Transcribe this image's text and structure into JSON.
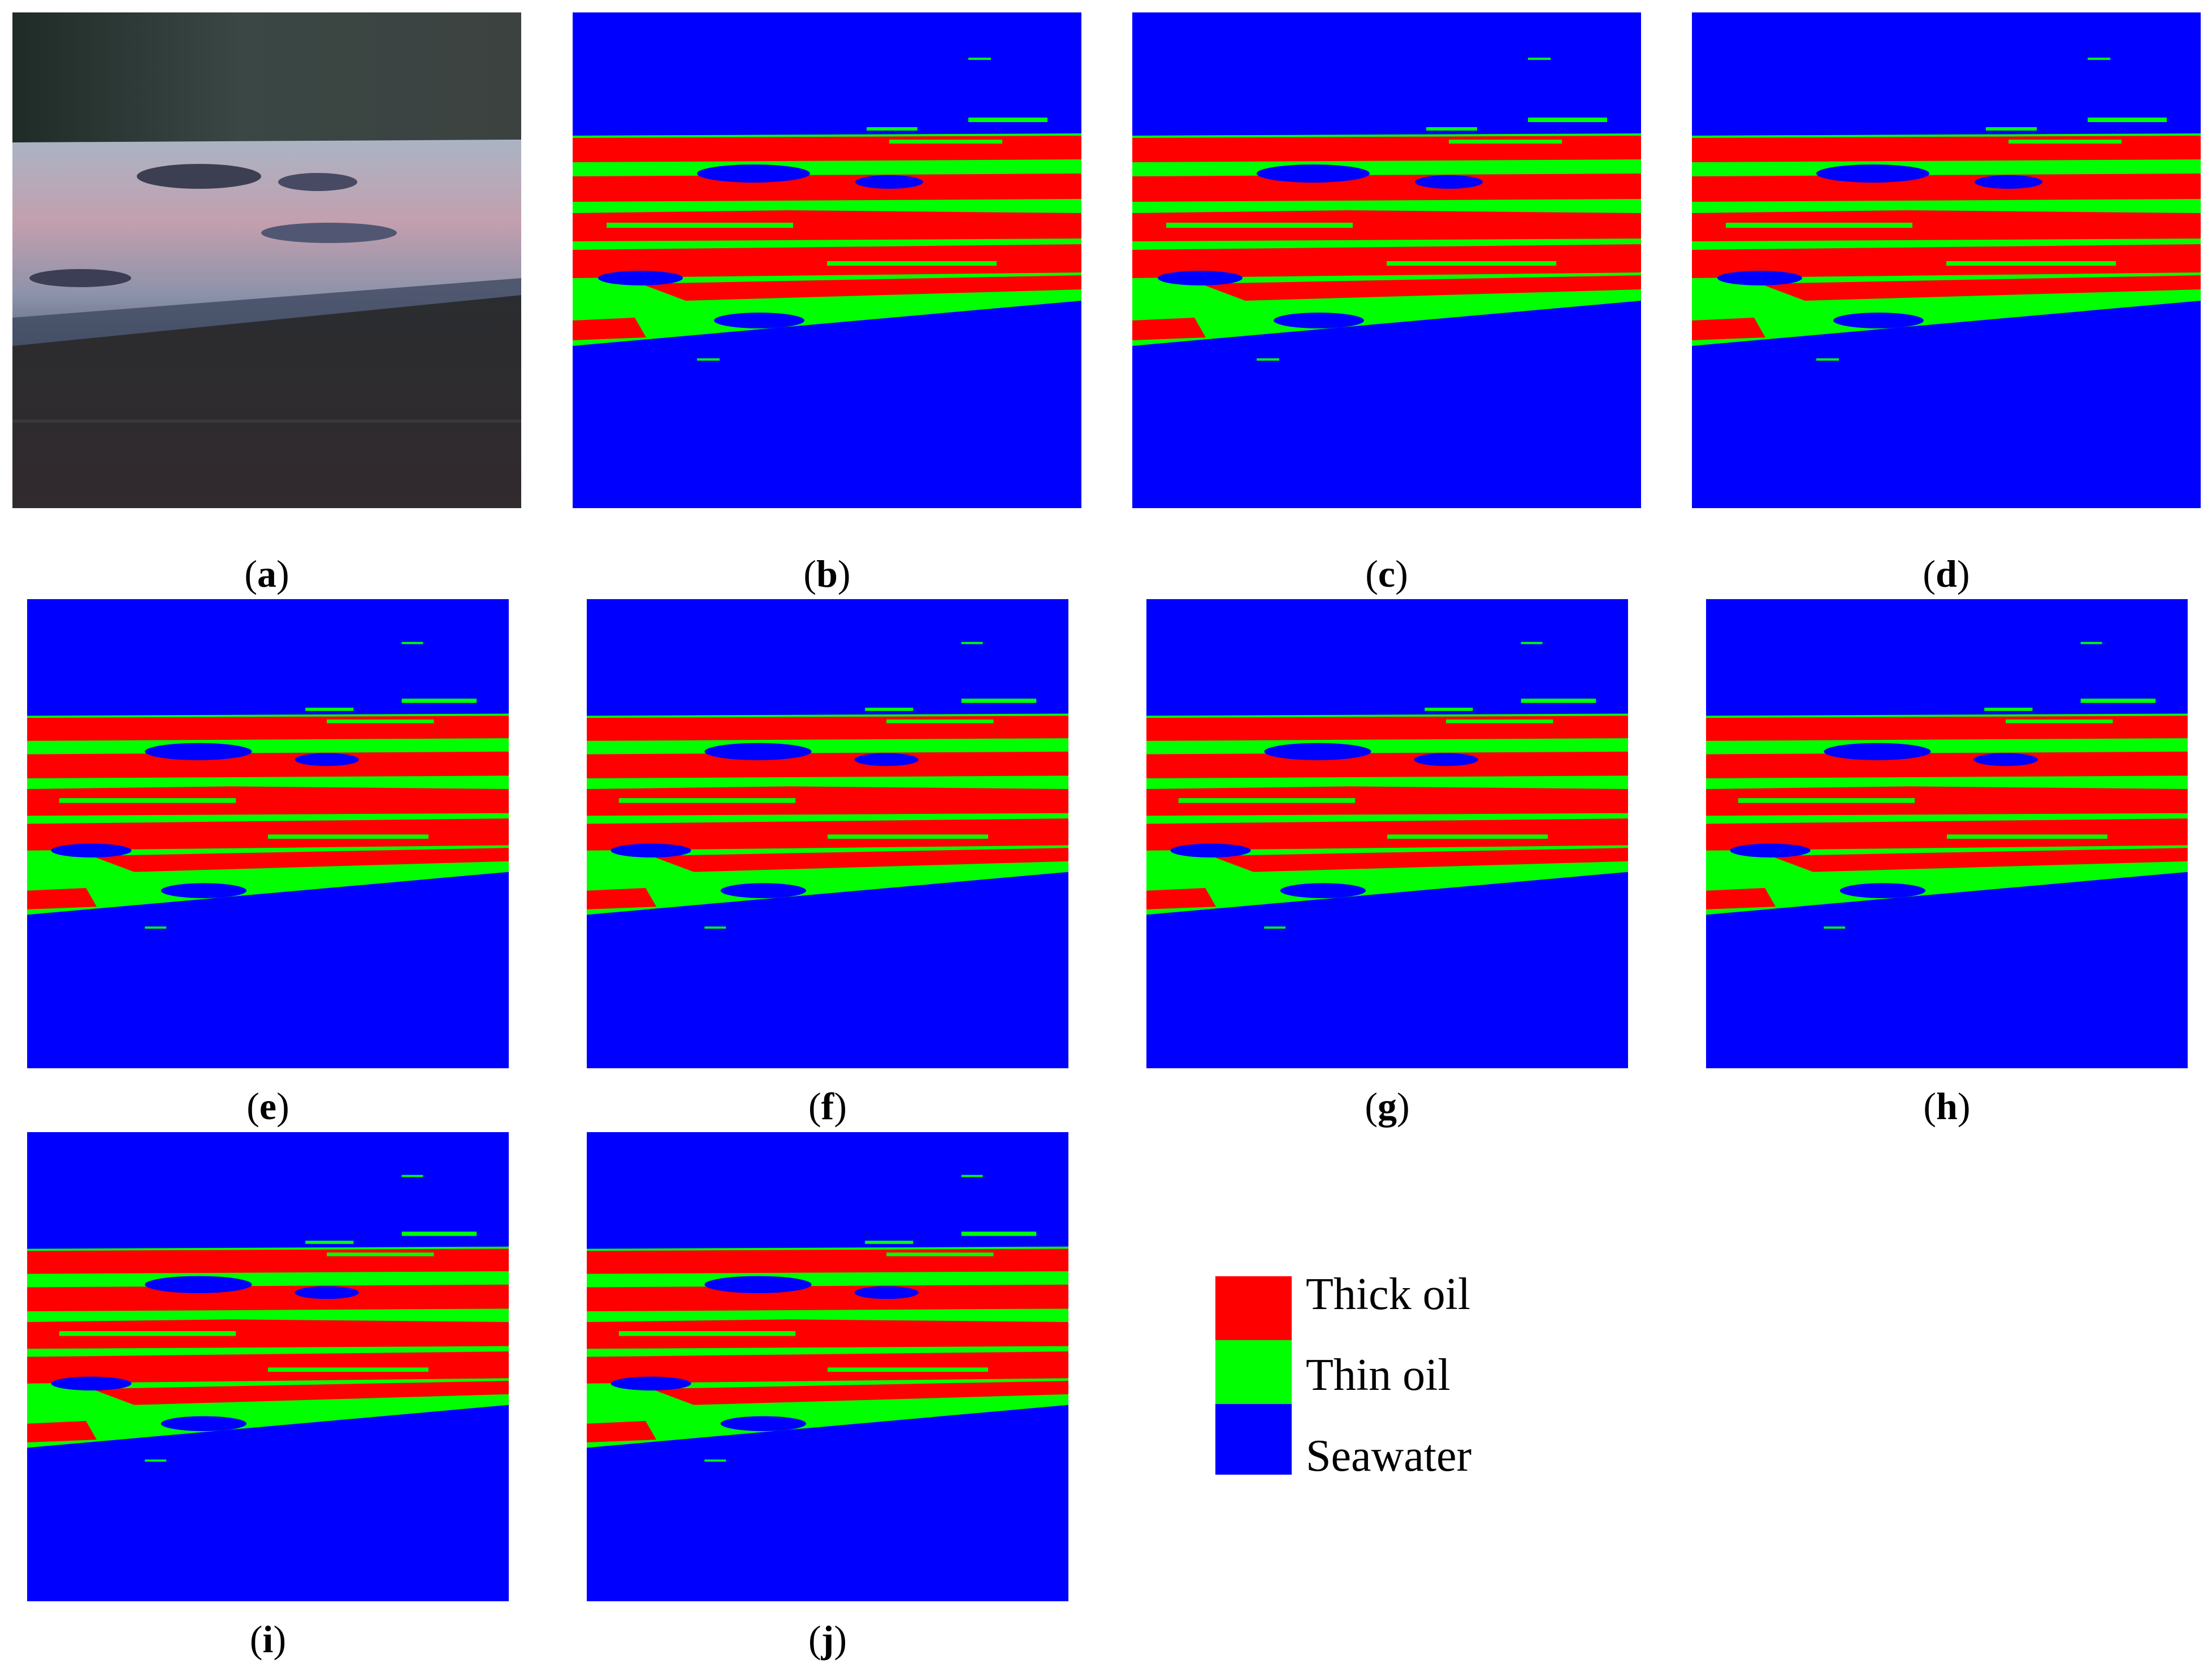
{
  "colors": {
    "thick_oil": "#ff0000",
    "thin_oil": "#00ff00",
    "seawater": "#0000ff"
  },
  "panels": [
    {
      "id": "a",
      "type": "photo"
    },
    {
      "id": "b",
      "type": "map"
    },
    {
      "id": "c",
      "type": "map"
    },
    {
      "id": "d",
      "type": "map"
    },
    {
      "id": "e",
      "type": "map"
    },
    {
      "id": "f",
      "type": "map"
    },
    {
      "id": "g",
      "type": "map"
    },
    {
      "id": "h",
      "type": "map"
    },
    {
      "id": "i",
      "type": "map"
    },
    {
      "id": "j",
      "type": "map"
    }
  ],
  "legend": {
    "items": [
      {
        "label": "Thick oil",
        "color": "#ff0000"
      },
      {
        "label": "Thin oil",
        "color": "#00ff00"
      },
      {
        "label": "Seawater",
        "color": "#0000ff"
      }
    ]
  }
}
